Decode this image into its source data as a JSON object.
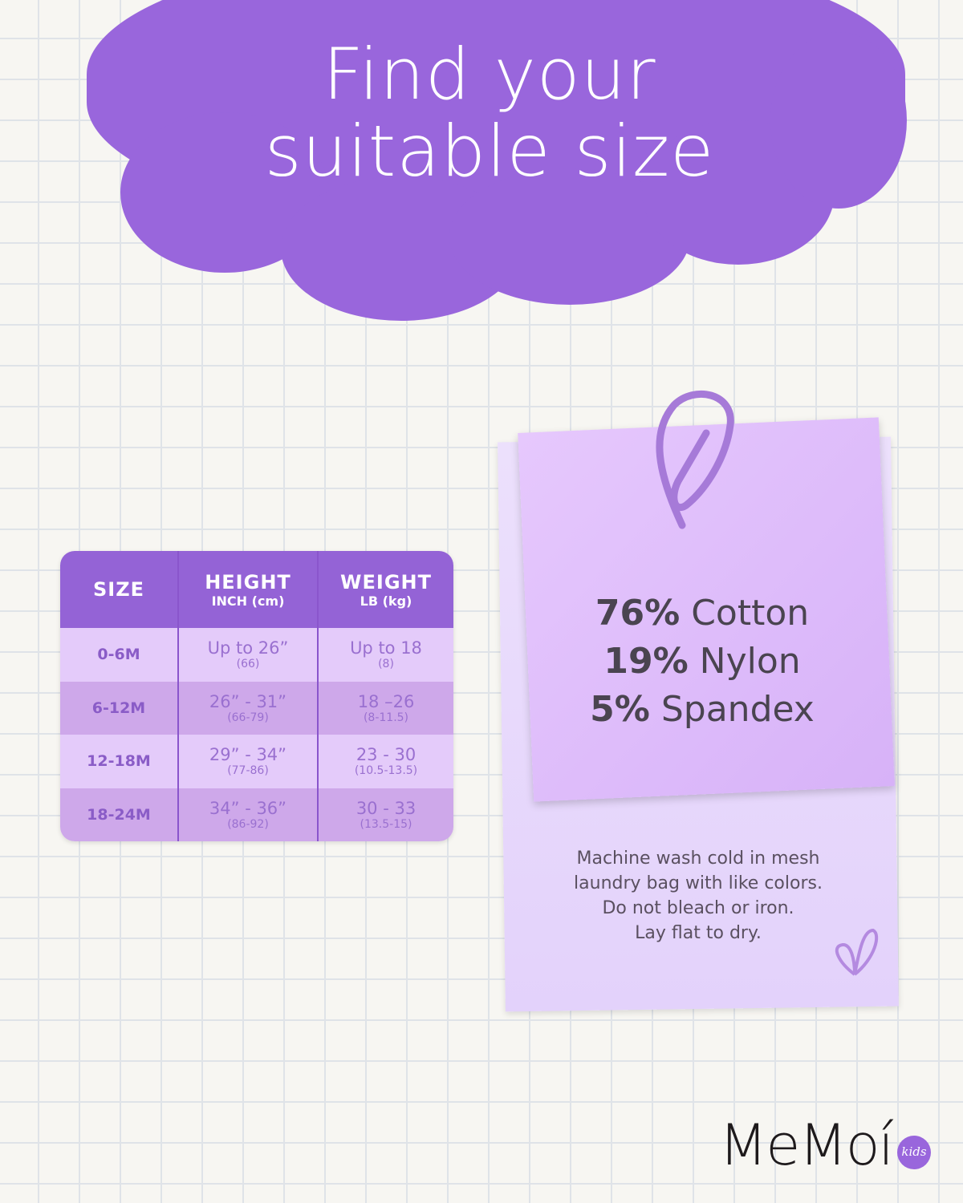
{
  "title": {
    "line1": "Find your",
    "line2": "suitable size"
  },
  "size_table": {
    "headers": [
      {
        "label": "SIZE",
        "unit": ""
      },
      {
        "label": "HEIGHT",
        "unit": "INCH (cm)"
      },
      {
        "label": "WEIGHT",
        "unit": "LB (kg)"
      }
    ],
    "rows": [
      {
        "size": "0-6M",
        "height": "Up to 26”",
        "height_cm": "(66)",
        "weight": "Up to 18",
        "weight_kg": "(8)"
      },
      {
        "size": "6-12M",
        "height": "26” - 31”",
        "height_cm": "(66-79)",
        "weight": "18 –26",
        "weight_kg": "(8-11.5)"
      },
      {
        "size": "12-18M",
        "height": "29” - 34”",
        "height_cm": "(77-86)",
        "weight": "23 - 30",
        "weight_kg": "(10.5-13.5)"
      },
      {
        "size": "18-24M",
        "height": "34” - 36”",
        "height_cm": "(86-92)",
        "weight": "30 - 33",
        "weight_kg": "(13.5-15)"
      }
    ]
  },
  "fabric": [
    {
      "pct": "76%",
      "name": "Cotton"
    },
    {
      "pct": "19%",
      "name": "Nylon"
    },
    {
      "pct": "5%",
      "name": "Spandex"
    }
  ],
  "care": [
    "Machine wash cold in mesh",
    "laundry bag with like colors.",
    "Do not bleach or iron.",
    "Lay flat to dry."
  ],
  "brand": {
    "name": "MeMoí",
    "badge": "kids"
  },
  "colors": {
    "accent": "#9966dc",
    "header": "#9463d6",
    "row_light": "#e4cbfa",
    "row_dark": "#cea8ea"
  }
}
